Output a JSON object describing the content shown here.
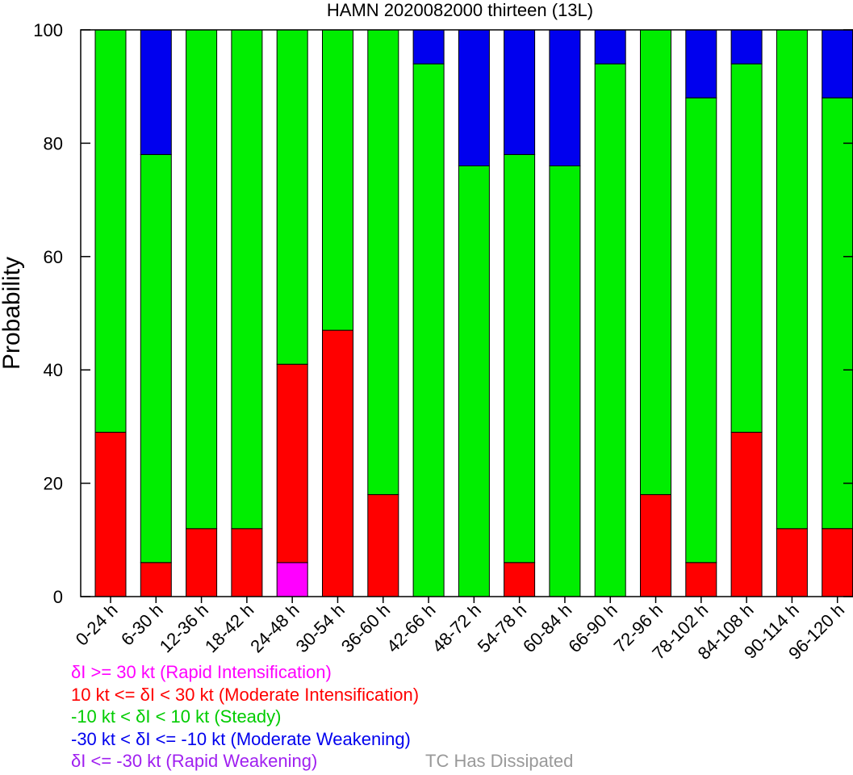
{
  "chart_data": {
    "type": "bar",
    "stacked": true,
    "title": "HAMN 2020082000 thirteen (13L)",
    "ylabel": "Probability",
    "xlabel": "",
    "ylim": [
      0,
      100
    ],
    "yticks": [
      0,
      20,
      40,
      60,
      80,
      100
    ],
    "categories": [
      "0-24 h",
      "6-30 h",
      "12-36 h",
      "18-42 h",
      "24-48 h",
      "30-54 h",
      "36-60 h",
      "42-66 h",
      "48-72 h",
      "54-78 h",
      "60-84 h",
      "66-90 h",
      "72-96 h",
      "78-102 h",
      "84-108 h",
      "90-114 h",
      "96-120 h"
    ],
    "series": [
      {
        "name": "δI >= 30 kt (Rapid Intensification)",
        "color": "#ff00ff",
        "values": [
          0,
          0,
          0,
          0,
          6,
          0,
          0,
          0,
          0,
          0,
          0,
          0,
          0,
          0,
          0,
          0,
          0
        ]
      },
      {
        "name": "10 kt <= δI < 30 kt (Moderate Intensification)",
        "color": "#ff0000",
        "values": [
          29,
          6,
          12,
          12,
          35,
          47,
          18,
          0,
          0,
          6,
          0,
          0,
          18,
          6,
          29,
          12,
          12
        ]
      },
      {
        "name": "-10 kt < δI < 10 kt (Steady)",
        "color": "#00ee00",
        "values": [
          71,
          72,
          88,
          88,
          59,
          53,
          82,
          94,
          76,
          72,
          76,
          94,
          82,
          82,
          65,
          88,
          76
        ]
      },
      {
        "name": "-30 kt < δI <= -10 kt (Moderate Weakening)",
        "color": "#0000ee",
        "values": [
          0,
          22,
          0,
          0,
          0,
          0,
          0,
          6,
          24,
          22,
          24,
          6,
          0,
          12,
          6,
          0,
          12
        ]
      },
      {
        "name": "δI <= -30 kt (Rapid Weakening)",
        "color": "#a020f0",
        "values": [
          0,
          0,
          0,
          0,
          0,
          0,
          0,
          0,
          0,
          0,
          0,
          0,
          0,
          0,
          0,
          0,
          0
        ]
      }
    ],
    "legend": [
      {
        "text": "δI >= 30 kt (Rapid Intensification)",
        "color": "#ff00ff"
      },
      {
        "text": "10 kt <= δI < 30 kt (Moderate Intensification)",
        "color": "#ff0000"
      },
      {
        "text": "-10 kt < δI < 10 kt (Steady)",
        "color": "#00cc00"
      },
      {
        "text": "-30 kt < δI <= -10 kt (Moderate Weakening)",
        "color": "#0000ee"
      },
      {
        "text": "δI <= -30 kt (Rapid Weakening)",
        "color": "#a020f0"
      }
    ],
    "dissipated_label": {
      "text": "TC Has Dissipated",
      "color": "#999999"
    },
    "grid": false,
    "legend_position": "bottom-left"
  }
}
